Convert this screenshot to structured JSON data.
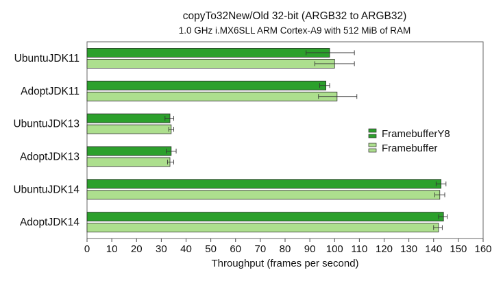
{
  "chart_data": {
    "type": "bar",
    "orientation": "horizontal",
    "title": "copyTo32New/Old 32-bit (ARGB32 to ARGB32)",
    "subtitle": "1.0 GHz i.MX6SLL ARM Cortex-A9 with 512 MiB of RAM",
    "xlabel": "Throughput (frames per second)",
    "ylabel": "",
    "xlim": [
      0,
      160
    ],
    "xticks": [
      0,
      10,
      20,
      30,
      40,
      50,
      60,
      70,
      80,
      90,
      100,
      110,
      120,
      130,
      140,
      150,
      160
    ],
    "categories": [
      "UbuntuJDK11",
      "AdoptJDK11",
      "UbuntuJDK13",
      "AdoptJDK13",
      "UbuntuJDK14",
      "AdoptJDK14"
    ],
    "series": [
      {
        "name": "FramebufferY8",
        "color": "#2ca02c",
        "values": [
          98.0,
          96.5,
          33.5,
          34.0,
          143.0,
          144.0
        ],
        "errors": [
          [
            88.5,
            108.0
          ],
          [
            94.0,
            98.0
          ],
          [
            31.5,
            35.0
          ],
          [
            32.0,
            36.0
          ],
          [
            141.0,
            145.0
          ],
          [
            142.0,
            145.5
          ]
        ]
      },
      {
        "name": "Framebuffer",
        "color": "#addf8e",
        "values": [
          100.0,
          101.0,
          34.0,
          33.5,
          142.5,
          142.0
        ],
        "errors": [
          [
            92.0,
            108.0
          ],
          [
            93.5,
            109.0
          ],
          [
            33.0,
            35.0
          ],
          [
            32.5,
            35.0
          ],
          [
            140.5,
            144.5
          ],
          [
            140.0,
            143.5
          ]
        ]
      }
    ],
    "legend": {
      "position": "right",
      "entries": [
        "FramebufferY8",
        "Framebuffer"
      ]
    },
    "grid": false
  }
}
